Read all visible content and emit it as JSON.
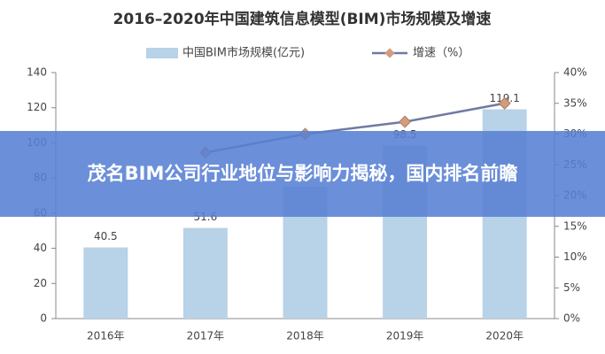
{
  "chart_data": {
    "type": "bar_line",
    "title": "2016–2020年中国建筑信息模型(BIM)市场规模及增速",
    "categories": [
      "2016年",
      "2017年",
      "2018年",
      "2019年",
      "2020年"
    ],
    "series": [
      {
        "name": "中国BIM市场规模(亿元)",
        "color": "#b8d2e7",
        "values": [
          40.5,
          51.6,
          75,
          98.5,
          119.1
        ]
      },
      {
        "name": "增速（%）",
        "color": "#6f7aa3",
        "marker_color": "#d39c7e",
        "axis": "y2",
        "values": [
          null,
          27,
          30,
          32,
          35
        ]
      }
    ],
    "ylim": [
      0,
      140
    ],
    "yticks": [
      0,
      20,
      40,
      60,
      80,
      100,
      120,
      140
    ],
    "y2lim": [
      0,
      40
    ],
    "y2ticks": [
      {
        "value": 0,
        "label": "0%"
      },
      {
        "value": 5,
        "label": "5%"
      },
      {
        "value": 10,
        "label": "10%"
      },
      {
        "value": 15,
        "label": "15%"
      },
      {
        "value": 20,
        "label": "20%"
      },
      {
        "value": 25,
        "label": "25%"
      },
      {
        "value": 30,
        "label": "30%"
      },
      {
        "value": 35,
        "label": "35%"
      },
      {
        "value": 40,
        "label": "40%"
      }
    ]
  },
  "banner": {
    "text": "茂名BIM公司行业地位与影响力揭秘，国内排名前瞻"
  }
}
